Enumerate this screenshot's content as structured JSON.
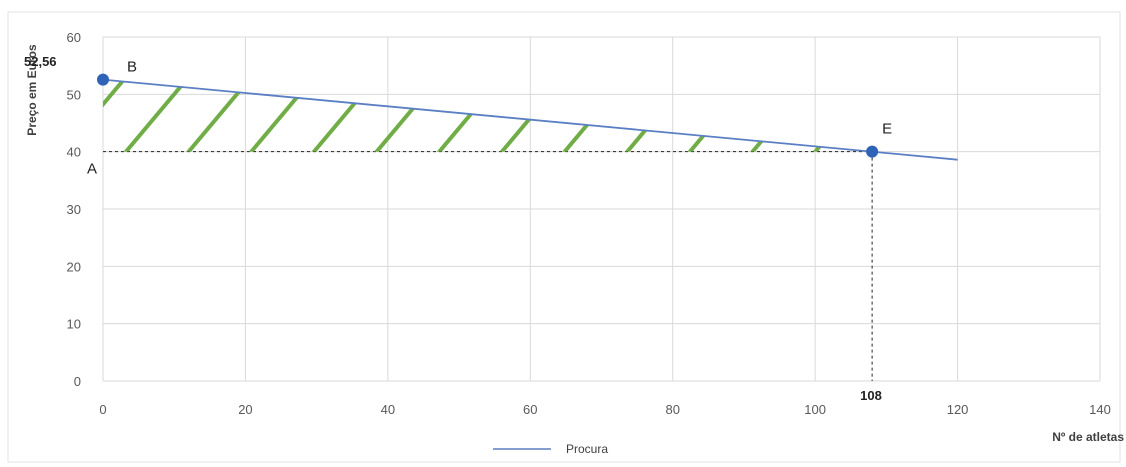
{
  "chart_data": {
    "type": "line",
    "xlabel": "Nº de atletas",
    "ylabel": "Preço em Euros",
    "xlim": [
      0,
      140
    ],
    "ylim": [
      0,
      60
    ],
    "x_ticks": [
      0,
      20,
      40,
      60,
      80,
      100,
      120,
      140
    ],
    "y_ticks": [
      0,
      10,
      20,
      30,
      40,
      50,
      60
    ],
    "grid": true,
    "legend_position": "bottom",
    "series": [
      {
        "name": "Procura",
        "x": [
          0,
          120
        ],
        "y": [
          52.56,
          38.6
        ],
        "color": "#5b7fc4"
      }
    ],
    "points": [
      {
        "label": "B",
        "x": 0,
        "y": 52.56,
        "color": "#2f63b8"
      },
      {
        "label": "E",
        "x": 108,
        "y": 40,
        "color": "#2f63b8"
      }
    ],
    "point_labels_extra": [
      {
        "label": "A",
        "x": 0,
        "y": 40
      }
    ],
    "value_labels": {
      "y_value": "52,56",
      "x_value": "108"
    },
    "reference_lines": {
      "price": 40,
      "quantity": 108,
      "color": "#222222",
      "style": "dashed"
    },
    "shaded_region": {
      "vertices": [
        [
          0,
          40
        ],
        [
          0,
          52.56
        ],
        [
          108,
          40
        ]
      ],
      "hatch_color": "#70ad47"
    }
  }
}
